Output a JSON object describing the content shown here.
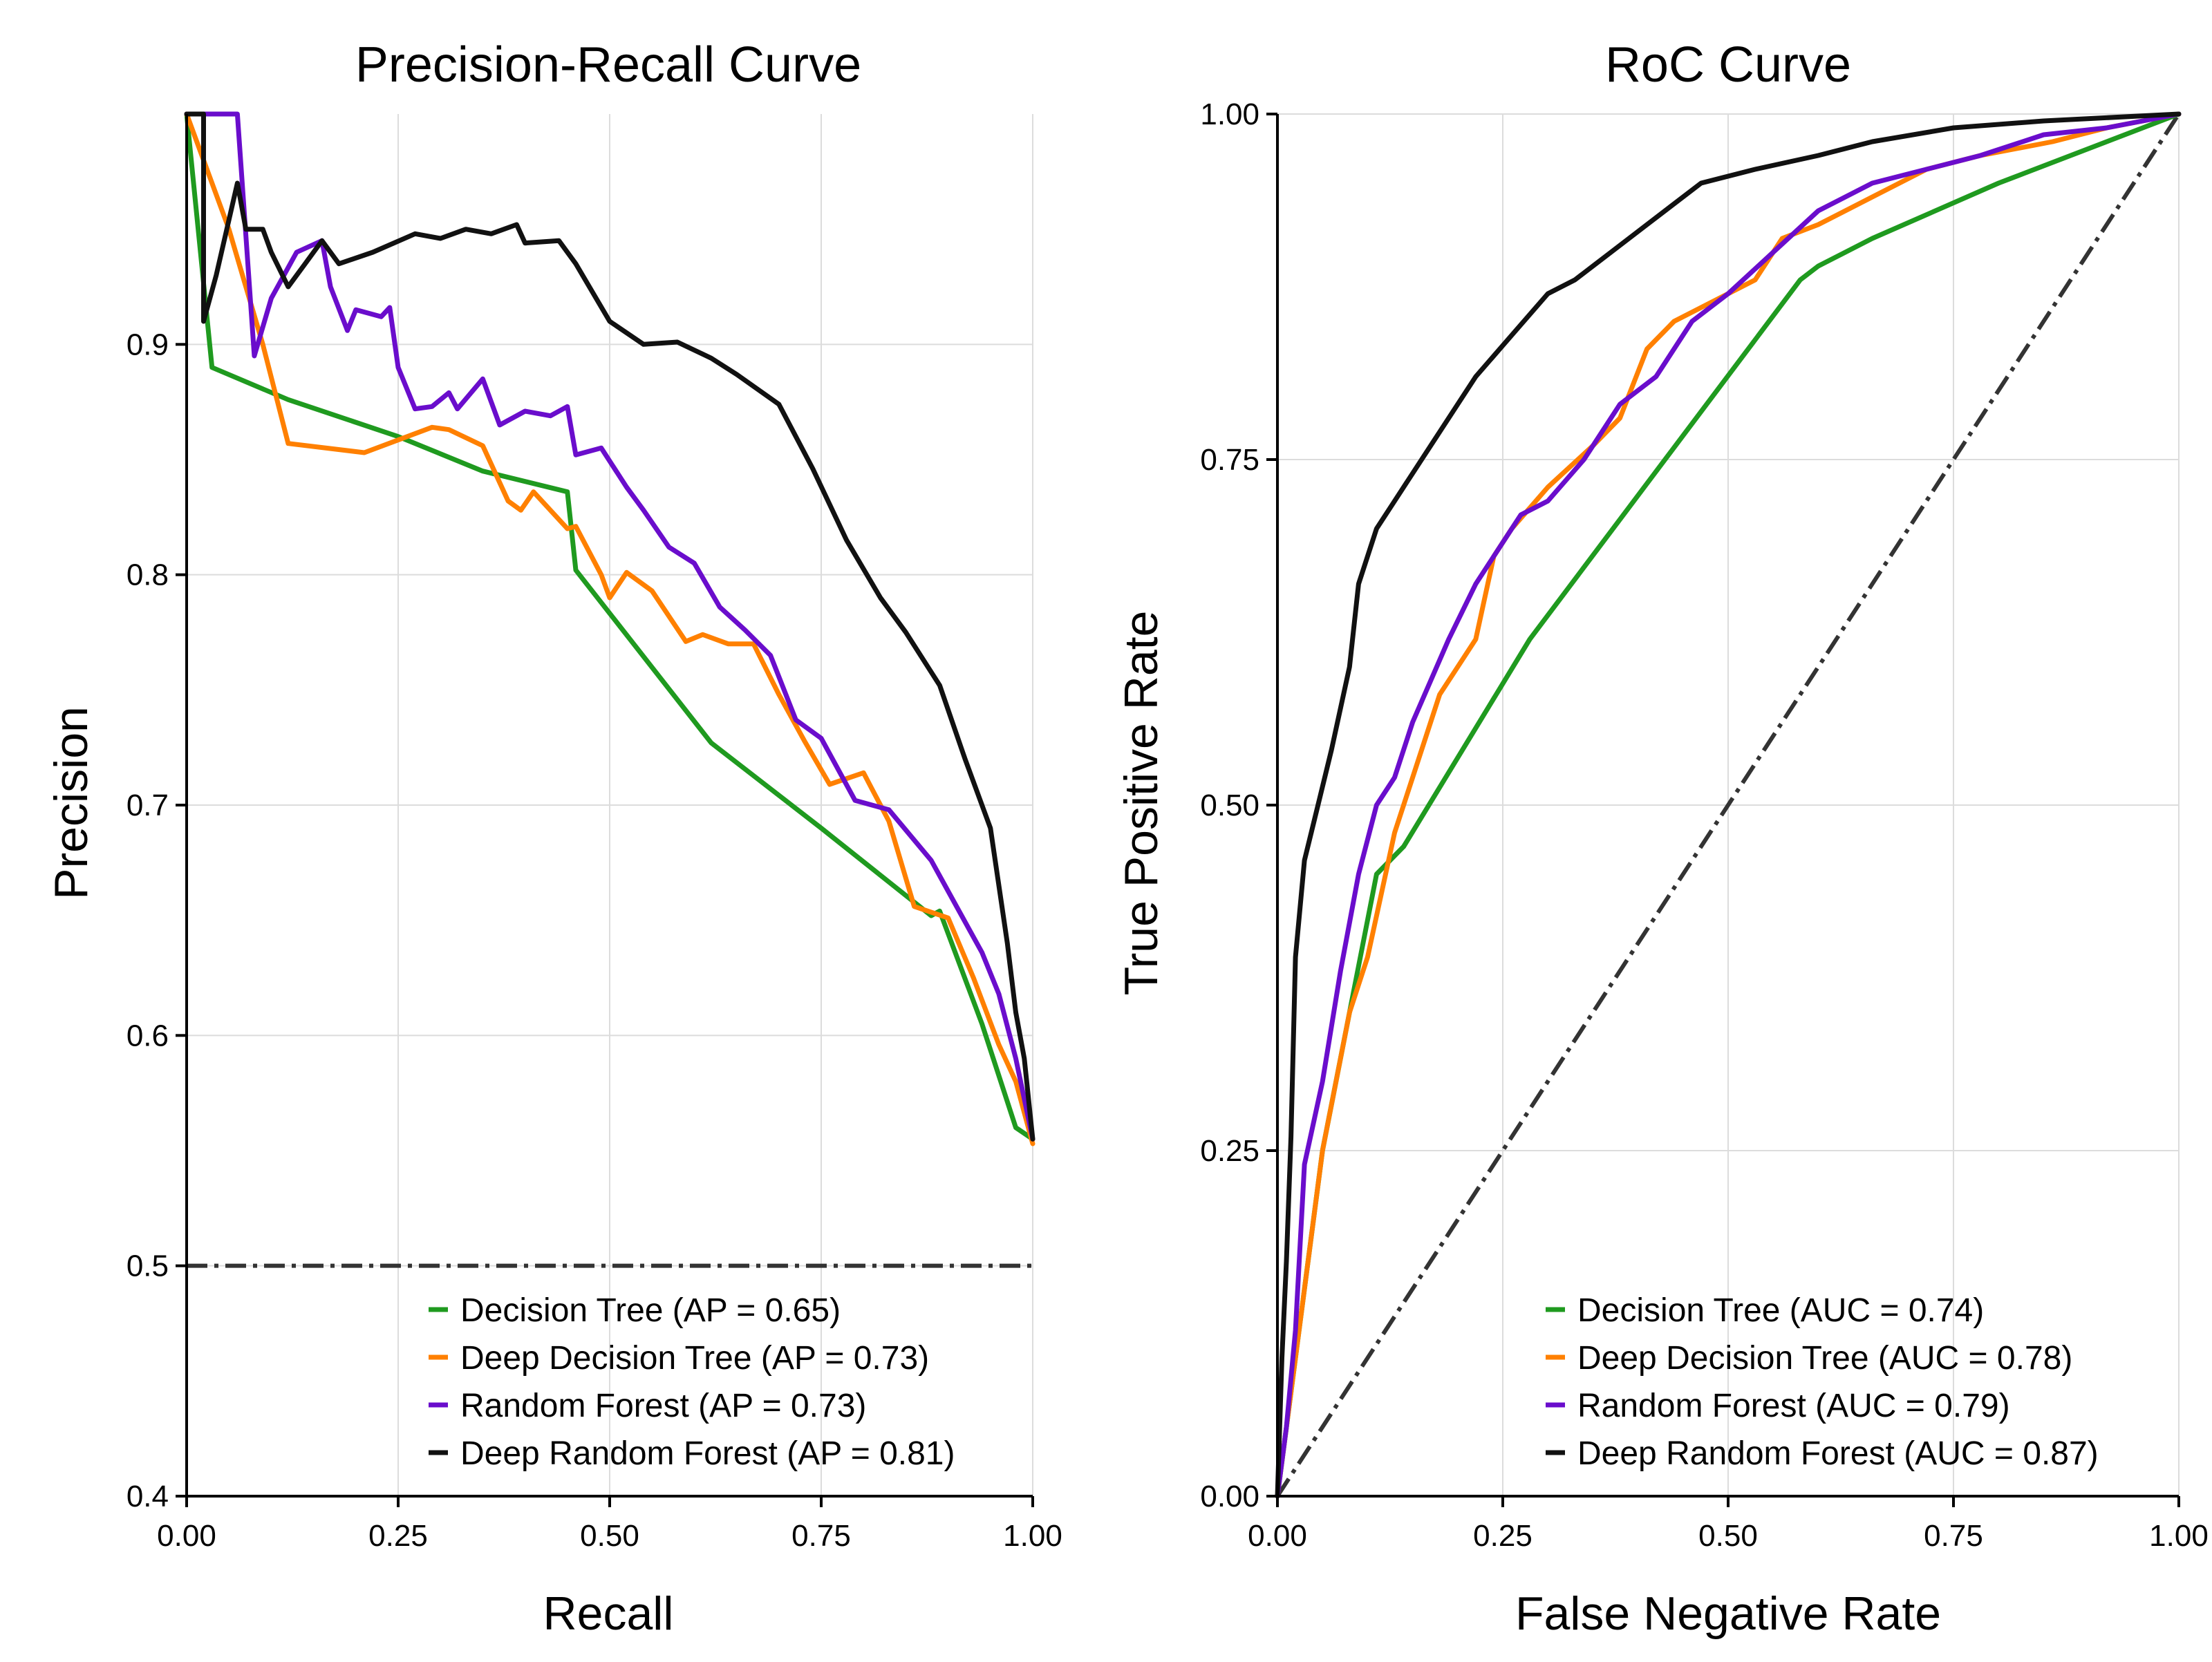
{
  "chart_data": [
    {
      "id": "pr",
      "type": "line",
      "title": "Precision-Recall Curve",
      "xlabel": "Recall",
      "ylabel": "Precision",
      "xlim": [
        0,
        1
      ],
      "ylim": [
        0.4,
        1.0
      ],
      "xticks": [
        0,
        0.25,
        0.5,
        0.75,
        1.0
      ],
      "xtick_labels": [
        "0.00",
        "0.25",
        "0.50",
        "0.75",
        "1.00"
      ],
      "yticks": [
        0.4,
        0.5,
        0.6,
        0.7,
        0.8,
        0.9
      ],
      "ytick_labels": [
        "0.4",
        "0.5",
        "0.6",
        "0.7",
        "0.8",
        "0.9"
      ],
      "grid": true,
      "legend_position": "bottom-right",
      "reference_line": {
        "style": "dash-dot",
        "color": "#333333",
        "points": [
          [
            0,
            0.5
          ],
          [
            1,
            0.5
          ]
        ]
      },
      "series": [
        {
          "name": "Decision Tree (AP = 0.65)",
          "color": "#1f9a1f",
          "points": [
            [
              0,
              1.0
            ],
            [
              0.03,
              0.89
            ],
            [
              0.12,
              0.876
            ],
            [
              0.25,
              0.86
            ],
            [
              0.35,
              0.845
            ],
            [
              0.45,
              0.836
            ],
            [
              0.46,
              0.802
            ],
            [
              0.62,
              0.727
            ],
            [
              0.75,
              0.69
            ],
            [
              0.88,
              0.652
            ],
            [
              0.89,
              0.654
            ],
            [
              0.94,
              0.605
            ],
            [
              0.98,
              0.56
            ],
            [
              1.0,
              0.555
            ]
          ]
        },
        {
          "name": "Deep Decision Tree (AP = 0.73)",
          "color": "#ff8000",
          "points": [
            [
              0,
              1.0
            ],
            [
              0.05,
              0.95
            ],
            [
              0.09,
              0.9
            ],
            [
              0.12,
              0.857
            ],
            [
              0.21,
              0.853
            ],
            [
              0.29,
              0.864
            ],
            [
              0.31,
              0.863
            ],
            [
              0.35,
              0.856
            ],
            [
              0.38,
              0.832
            ],
            [
              0.395,
              0.828
            ],
            [
              0.41,
              0.836
            ],
            [
              0.45,
              0.82
            ],
            [
              0.46,
              0.821
            ],
            [
              0.49,
              0.8
            ],
            [
              0.5,
              0.79
            ],
            [
              0.52,
              0.801
            ],
            [
              0.55,
              0.793
            ],
            [
              0.59,
              0.771
            ],
            [
              0.61,
              0.774
            ],
            [
              0.64,
              0.77
            ],
            [
              0.67,
              0.77
            ],
            [
              0.7,
              0.748
            ],
            [
              0.73,
              0.728
            ],
            [
              0.76,
              0.709
            ],
            [
              0.8,
              0.714
            ],
            [
              0.83,
              0.693
            ],
            [
              0.86,
              0.656
            ],
            [
              0.9,
              0.651
            ],
            [
              0.93,
              0.625
            ],
            [
              0.96,
              0.596
            ],
            [
              0.98,
              0.58
            ],
            [
              1.0,
              0.553
            ]
          ]
        },
        {
          "name": "Random Forest (AP = 0.73)",
          "color": "#6a0dcc",
          "points": [
            [
              0,
              1.0
            ],
            [
              0.06,
              1.0
            ],
            [
              0.08,
              0.895
            ],
            [
              0.1,
              0.92
            ],
            [
              0.13,
              0.94
            ],
            [
              0.16,
              0.945
            ],
            [
              0.17,
              0.925
            ],
            [
              0.19,
              0.906
            ],
            [
              0.2,
              0.915
            ],
            [
              0.23,
              0.912
            ],
            [
              0.24,
              0.916
            ],
            [
              0.25,
              0.89
            ],
            [
              0.27,
              0.872
            ],
            [
              0.29,
              0.873
            ],
            [
              0.31,
              0.879
            ],
            [
              0.32,
              0.872
            ],
            [
              0.35,
              0.885
            ],
            [
              0.37,
              0.865
            ],
            [
              0.4,
              0.871
            ],
            [
              0.43,
              0.869
            ],
            [
              0.45,
              0.873
            ],
            [
              0.46,
              0.852
            ],
            [
              0.49,
              0.855
            ],
            [
              0.52,
              0.838
            ],
            [
              0.54,
              0.828
            ],
            [
              0.57,
              0.812
            ],
            [
              0.6,
              0.805
            ],
            [
              0.63,
              0.786
            ],
            [
              0.66,
              0.776
            ],
            [
              0.69,
              0.765
            ],
            [
              0.72,
              0.737
            ],
            [
              0.75,
              0.729
            ],
            [
              0.79,
              0.702
            ],
            [
              0.83,
              0.698
            ],
            [
              0.88,
              0.676
            ],
            [
              0.91,
              0.656
            ],
            [
              0.94,
              0.636
            ],
            [
              0.96,
              0.618
            ],
            [
              0.98,
              0.59
            ],
            [
              1.0,
              0.555
            ]
          ]
        },
        {
          "name": "Deep Random Forest (AP = 0.81)",
          "color": "#111111",
          "points": [
            [
              0,
              1.0
            ],
            [
              0.02,
              1.0
            ],
            [
              0.02,
              0.91
            ],
            [
              0.035,
              0.93
            ],
            [
              0.06,
              0.97
            ],
            [
              0.07,
              0.95
            ],
            [
              0.09,
              0.95
            ],
            [
              0.1,
              0.94
            ],
            [
              0.12,
              0.925
            ],
            [
              0.14,
              0.935
            ],
            [
              0.16,
              0.945
            ],
            [
              0.18,
              0.935
            ],
            [
              0.22,
              0.94
            ],
            [
              0.27,
              0.948
            ],
            [
              0.3,
              0.946
            ],
            [
              0.33,
              0.95
            ],
            [
              0.36,
              0.948
            ],
            [
              0.39,
              0.952
            ],
            [
              0.4,
              0.944
            ],
            [
              0.44,
              0.945
            ],
            [
              0.46,
              0.935
            ],
            [
              0.5,
              0.91
            ],
            [
              0.54,
              0.9
            ],
            [
              0.58,
              0.901
            ],
            [
              0.62,
              0.894
            ],
            [
              0.65,
              0.887
            ],
            [
              0.7,
              0.874
            ],
            [
              0.74,
              0.846
            ],
            [
              0.78,
              0.815
            ],
            [
              0.82,
              0.79
            ],
            [
              0.85,
              0.775
            ],
            [
              0.89,
              0.752
            ],
            [
              0.92,
              0.72
            ],
            [
              0.95,
              0.69
            ],
            [
              0.97,
              0.64
            ],
            [
              0.98,
              0.61
            ],
            [
              0.99,
              0.59
            ],
            [
              1.0,
              0.555
            ]
          ]
        }
      ]
    },
    {
      "id": "roc",
      "type": "line",
      "title": "RoC Curve",
      "xlabel": "False Negative Rate",
      "ylabel": "True Positive Rate",
      "xlim": [
        0,
        1
      ],
      "ylim": [
        0,
        1
      ],
      "xticks": [
        0,
        0.25,
        0.5,
        0.75,
        1.0
      ],
      "xtick_labels": [
        "0.00",
        "0.25",
        "0.50",
        "0.75",
        "1.00"
      ],
      "yticks": [
        0,
        0.25,
        0.5,
        0.75,
        1.0
      ],
      "ytick_labels": [
        "0.00",
        "0.25",
        "0.50",
        "0.75",
        "1.00"
      ],
      "grid": true,
      "legend_position": "bottom-right",
      "reference_line": {
        "style": "dash-dot",
        "color": "#333333",
        "points": [
          [
            0,
            0
          ],
          [
            1,
            1
          ]
        ]
      },
      "series": [
        {
          "name": "Decision Tree (AUC = 0.74)",
          "color": "#1f9a1f",
          "points": [
            [
              0,
              0
            ],
            [
              0.05,
              0.25
            ],
            [
              0.11,
              0.45
            ],
            [
              0.14,
              0.47
            ],
            [
              0.28,
              0.62
            ],
            [
              0.58,
              0.88
            ],
            [
              0.6,
              0.89
            ],
            [
              0.66,
              0.91
            ],
            [
              0.8,
              0.95
            ],
            [
              1.0,
              1.0
            ]
          ]
        },
        {
          "name": "Deep Decision Tree (AUC = 0.78)",
          "color": "#ff8000",
          "points": [
            [
              0,
              0
            ],
            [
              0.02,
              0.1
            ],
            [
              0.05,
              0.25
            ],
            [
              0.08,
              0.35
            ],
            [
              0.1,
              0.39
            ],
            [
              0.13,
              0.48
            ],
            [
              0.15,
              0.52
            ],
            [
              0.18,
              0.58
            ],
            [
              0.22,
              0.62
            ],
            [
              0.24,
              0.68
            ],
            [
              0.26,
              0.7
            ],
            [
              0.3,
              0.73
            ],
            [
              0.35,
              0.76
            ],
            [
              0.38,
              0.78
            ],
            [
              0.41,
              0.83
            ],
            [
              0.44,
              0.85
            ],
            [
              0.5,
              0.87
            ],
            [
              0.53,
              0.88
            ],
            [
              0.56,
              0.91
            ],
            [
              0.6,
              0.92
            ],
            [
              0.66,
              0.94
            ],
            [
              0.72,
              0.96
            ],
            [
              0.78,
              0.97
            ],
            [
              0.86,
              0.98
            ],
            [
              0.92,
              0.99
            ],
            [
              1.0,
              1.0
            ]
          ]
        },
        {
          "name": "Random Forest (AUC = 0.79)",
          "color": "#6a0dcc",
          "points": [
            [
              0,
              0
            ],
            [
              0.01,
              0.05
            ],
            [
              0.02,
              0.12
            ],
            [
              0.03,
              0.24
            ],
            [
              0.05,
              0.3
            ],
            [
              0.07,
              0.38
            ],
            [
              0.09,
              0.45
            ],
            [
              0.11,
              0.5
            ],
            [
              0.13,
              0.52
            ],
            [
              0.15,
              0.56
            ],
            [
              0.17,
              0.59
            ],
            [
              0.19,
              0.62
            ],
            [
              0.22,
              0.66
            ],
            [
              0.25,
              0.69
            ],
            [
              0.27,
              0.71
            ],
            [
              0.3,
              0.72
            ],
            [
              0.34,
              0.75
            ],
            [
              0.38,
              0.79
            ],
            [
              0.42,
              0.81
            ],
            [
              0.46,
              0.85
            ],
            [
              0.5,
              0.87
            ],
            [
              0.55,
              0.9
            ],
            [
              0.6,
              0.93
            ],
            [
              0.66,
              0.95
            ],
            [
              0.72,
              0.96
            ],
            [
              0.78,
              0.97
            ],
            [
              0.85,
              0.985
            ],
            [
              0.92,
              0.99
            ],
            [
              1.0,
              1.0
            ]
          ]
        },
        {
          "name": "Deep Random Forest (AUC = 0.87)",
          "color": "#111111",
          "points": [
            [
              0,
              0
            ],
            [
              0.005,
              0.1
            ],
            [
              0.01,
              0.17
            ],
            [
              0.015,
              0.26
            ],
            [
              0.02,
              0.39
            ],
            [
              0.03,
              0.46
            ],
            [
              0.045,
              0.5
            ],
            [
              0.06,
              0.54
            ],
            [
              0.08,
              0.6
            ],
            [
              0.09,
              0.66
            ],
            [
              0.11,
              0.7
            ],
            [
              0.13,
              0.72
            ],
            [
              0.16,
              0.75
            ],
            [
              0.18,
              0.77
            ],
            [
              0.2,
              0.79
            ],
            [
              0.22,
              0.81
            ],
            [
              0.26,
              0.84
            ],
            [
              0.3,
              0.87
            ],
            [
              0.33,
              0.88
            ],
            [
              0.37,
              0.9
            ],
            [
              0.41,
              0.92
            ],
            [
              0.47,
              0.95
            ],
            [
              0.53,
              0.96
            ],
            [
              0.6,
              0.97
            ],
            [
              0.66,
              0.98
            ],
            [
              0.75,
              0.99
            ],
            [
              0.85,
              0.995
            ],
            [
              1.0,
              1.0
            ]
          ]
        }
      ]
    }
  ]
}
